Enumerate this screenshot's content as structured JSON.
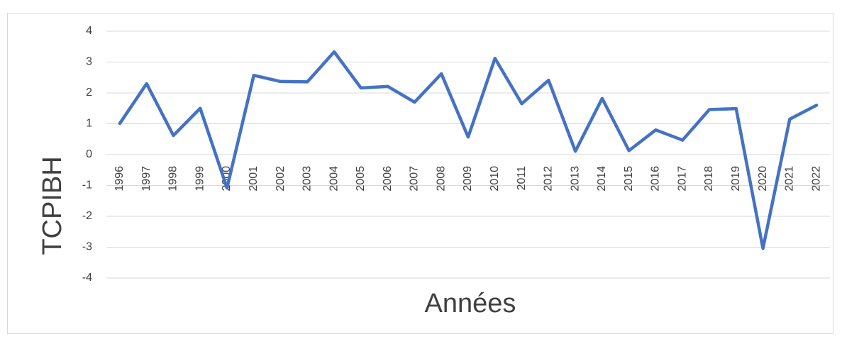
{
  "chart_data": {
    "type": "line",
    "xlabel": "Années",
    "ylabel": "TCPIBH",
    "categories": [
      "1996",
      "1997",
      "1998",
      "1999",
      "2000",
      "2001",
      "2002",
      "2003",
      "2004",
      "2005",
      "2006",
      "2007",
      "2008",
      "2009",
      "2010",
      "2011",
      "2012",
      "2013",
      "2014",
      "2015",
      "2016",
      "2017",
      "2018",
      "2019",
      "2020",
      "2021",
      "2022"
    ],
    "values": [
      1.01,
      2.3,
      0.62,
      1.5,
      -1.08,
      2.57,
      2.37,
      2.36,
      3.33,
      2.16,
      2.21,
      1.7,
      2.62,
      0.57,
      3.12,
      1.65,
      2.41,
      0.11,
      1.82,
      0.13,
      0.8,
      0.47,
      1.46,
      1.49,
      -3.04,
      1.15,
      1.6
    ],
    "color": "#4472c4",
    "ylim": [
      -4,
      4
    ],
    "yticks": [
      -4,
      -3,
      -2,
      -1,
      0,
      1,
      2,
      3,
      4
    ],
    "grid": true
  }
}
